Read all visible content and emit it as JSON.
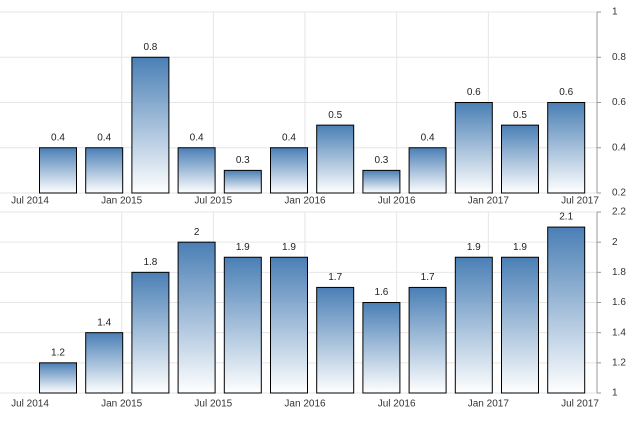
{
  "chart_data": [
    {
      "type": "bar",
      "color": "#4a7fb5",
      "categories": [
        null,
        null,
        null,
        null,
        null,
        null,
        null,
        null,
        null,
        null,
        null,
        null
      ],
      "values": [
        0.4,
        0.4,
        0.8,
        0.4,
        0.3,
        0.4,
        0.5,
        0.3,
        0.4,
        0.6,
        0.5,
        0.6
      ],
      "x_labels": [
        "Jul 2014",
        "Jan 2015",
        "Jul 2015",
        "Jan 2016",
        "Jul 2016",
        "Jan 2017",
        "Jul 2017"
      ],
      "ylim": [
        0.2,
        1
      ],
      "yticks": [
        0.2,
        0.4,
        0.6,
        0.8,
        1
      ],
      "grid": true
    },
    {
      "type": "bar",
      "color": "#4a7fb5",
      "categories": [
        null,
        null,
        null,
        null,
        null,
        null,
        null,
        null,
        null,
        null,
        null,
        null
      ],
      "values": [
        1.2,
        1.4,
        1.8,
        2,
        1.9,
        1.9,
        1.7,
        1.6,
        1.7,
        1.9,
        1.9,
        2.1
      ],
      "x_labels": [
        "Jul 2014",
        "Jan 2015",
        "Jul 2015",
        "Jan 2016",
        "Jul 2016",
        "Jan 2017",
        "Jul 2017"
      ],
      "ylim": [
        1,
        2.2
      ],
      "yticks": [
        1,
        1.2,
        1.4,
        1.6,
        1.8,
        2,
        2.2
      ],
      "grid": true
    }
  ]
}
